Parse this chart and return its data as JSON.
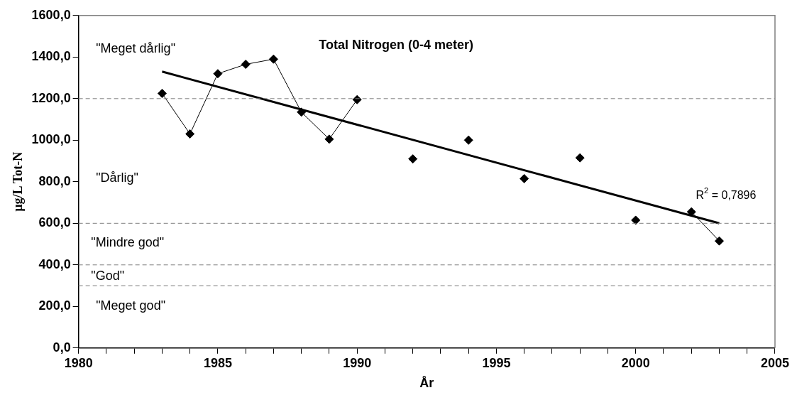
{
  "chart_data": {
    "type": "line",
    "title": "Total Nitrogen (0-4 meter)",
    "xlabel": "År",
    "ylabel": "µg/L Tot-N",
    "xlim": [
      1980,
      2005
    ],
    "xticks": [
      1980,
      {
        "value": 1981,
        "label": null
      },
      {
        "value": 1982,
        "label": null
      },
      {
        "value": 1983,
        "label": null
      },
      {
        "value": 1984,
        "label": null
      },
      1985,
      {
        "value": 1986,
        "label": null
      },
      {
        "value": 1987,
        "label": null
      },
      {
        "value": 1988,
        "label": null
      },
      {
        "value": 1989,
        "label": null
      },
      1990,
      {
        "value": 1991,
        "label": null
      },
      {
        "value": 1992,
        "label": null
      },
      {
        "value": 1993,
        "label": null
      },
      {
        "value": 1994,
        "label": null
      },
      1995,
      {
        "value": 1996,
        "label": null
      },
      {
        "value": 1997,
        "label": null
      },
      {
        "value": 1998,
        "label": null
      },
      {
        "value": 1999,
        "label": null
      },
      2000,
      {
        "value": 2001,
        "label": null
      },
      {
        "value": 2002,
        "label": null
      },
      {
        "value": 2003,
        "label": null
      },
      {
        "value": 2004,
        "label": null
      },
      2005
    ],
    "ylim": [
      0,
      1600
    ],
    "yticks": [
      {
        "value": 0,
        "label": "0,0"
      },
      {
        "value": 200,
        "label": "200,0"
      },
      {
        "value": 400,
        "label": "400,0"
      },
      {
        "value": 600,
        "label": "600,0"
      },
      {
        "value": 800,
        "label": "800,0"
      },
      {
        "value": 1000,
        "label": "1000,0"
      },
      {
        "value": 1200,
        "label": "1200,0"
      },
      {
        "value": 1400,
        "label": "1400,0"
      },
      {
        "value": 1600,
        "label": "1600,0"
      }
    ],
    "series": [
      {
        "color": "#000000",
        "marker": "diamond",
        "x": [
          1983,
          1984,
          1985,
          1986,
          1987,
          1988,
          1989,
          1990,
          1991,
          1992,
          1993,
          1994,
          1995,
          1996,
          1997,
          1998,
          1999,
          2000,
          2001,
          2002,
          2003
        ],
        "values": [
          1225,
          1030,
          1320,
          1365,
          1390,
          1135,
          1005,
          1195,
          null,
          910,
          null,
          1000,
          null,
          815,
          null,
          915,
          null,
          615,
          null,
          655,
          515
        ]
      },
      {
        "color": "#000000",
        "marker": "none",
        "x": [
          1983,
          2003
        ],
        "values": [
          1330,
          600
        ]
      }
    ],
    "ref_lines": [
      {
        "axis": "y",
        "value": 1200,
        "color": "#808080",
        "line_style": "dashed"
      },
      {
        "axis": "y",
        "value": 600,
        "color": "#808080",
        "line_style": "dashed"
      },
      {
        "axis": "y",
        "value": 400,
        "color": "#808080",
        "line_style": "dashed"
      },
      {
        "axis": "y",
        "value": 300,
        "color": "#808080",
        "line_style": "dashed"
      }
    ],
    "annotations": [
      "\"Meget dårlig\"",
      "\"Dårlig\"",
      "\"Mindre god\"",
      "\"God\"",
      "\"Meget god\"",
      "R$^{2}$ = 0,7896"
    ],
    "grid": false,
    "legend": false
  }
}
